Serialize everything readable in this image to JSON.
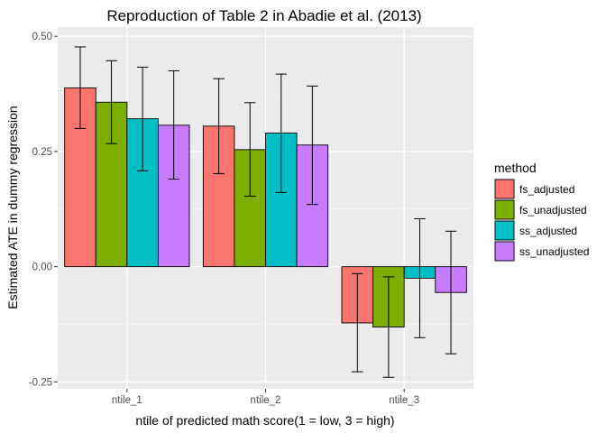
{
  "chart_data": {
    "type": "bar",
    "title": "Reproduction of Table 2 in Abadie et al. (2013)",
    "xlabel": "ntile of predicted math score(1 = low, 3 = high)",
    "ylabel": "Estimated ATE in dummy regression",
    "categories": [
      "ntile_1",
      "ntile_2",
      "ntile_3"
    ],
    "ylim": [
      -0.265,
      0.52
    ],
    "yticks": [
      -0.25,
      0.0,
      0.25,
      0.5
    ],
    "ytick_labels": [
      "-0.25",
      "0.00",
      "0.25",
      "0.50"
    ],
    "grid": true,
    "legend": {
      "title": "method",
      "position": "right"
    },
    "series": [
      {
        "name": "fs_adjusted",
        "color": "#F8766D",
        "values": [
          0.388,
          0.305,
          -0.122
        ],
        "err_low": [
          0.3,
          0.202,
          -0.228
        ],
        "err_high": [
          0.477,
          0.408,
          -0.015
        ]
      },
      {
        "name": "fs_unadjusted",
        "color": "#7CAE00",
        "values": [
          0.357,
          0.254,
          -0.131
        ],
        "err_low": [
          0.267,
          0.153,
          -0.24
        ],
        "err_high": [
          0.447,
          0.356,
          -0.022
        ]
      },
      {
        "name": "ss_adjusted",
        "color": "#00BFC4",
        "values": [
          0.321,
          0.29,
          -0.025
        ],
        "err_low": [
          0.208,
          0.161,
          -0.154
        ],
        "err_high": [
          0.433,
          0.418,
          0.104
        ]
      },
      {
        "name": "ss_unadjusted",
        "color": "#C77CFF",
        "values": [
          0.307,
          0.264,
          -0.056
        ],
        "err_low": [
          0.19,
          0.135,
          -0.189
        ],
        "err_high": [
          0.425,
          0.392,
          0.077
        ]
      }
    ]
  }
}
